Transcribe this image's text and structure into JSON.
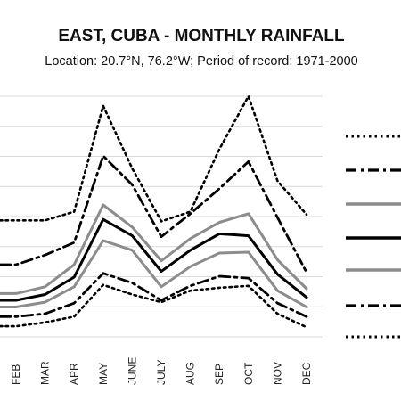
{
  "chart_data": {
    "type": "line",
    "title": "EAST, CUBA - MONTHLY RAINFALL",
    "subtitle": "Location: 20.7°N, 76.2°W; Period of record: 1971-2000",
    "categories": [
      "FEB",
      "MAR",
      "APR",
      "MAY",
      "JUNE",
      "JULY",
      "AUG",
      "SEP",
      "OCT",
      "NOV",
      "DEC"
    ],
    "ylim": [
      0,
      250
    ],
    "grid": true,
    "series": [
      {
        "style": "dotted-black",
        "values": [
          121,
          121,
          130,
          240,
          175,
          120,
          130,
          195,
          250,
          162,
          127
        ]
      },
      {
        "style": "dashdot-black",
        "values": [
          75,
          85,
          98,
          188,
          158,
          104,
          128,
          154,
          182,
          124,
          67
        ]
      },
      {
        "style": "solid-gray",
        "values": [
          45,
          52,
          75,
          137,
          114,
          79,
          102,
          119,
          128,
          80,
          50
        ]
      },
      {
        "style": "solid-black",
        "values": [
          38,
          44,
          62,
          122,
          105,
          68,
          90,
          107,
          105,
          65,
          41
        ]
      },
      {
        "style": "solid-gray",
        "values": [
          31,
          36,
          52,
          100,
          90,
          52,
          73,
          87,
          88,
          48,
          31
        ]
      },
      {
        "style": "dashdot-black",
        "values": [
          21,
          24,
          35,
          66,
          56,
          38,
          53,
          63,
          61,
          35,
          21
        ]
      },
      {
        "style": "dotted-black",
        "values": [
          11,
          15,
          21,
          54,
          44,
          36,
          48,
          51,
          53,
          24,
          10
        ]
      }
    ],
    "colors": {
      "black": "#000000",
      "gray": "#8c8c8c",
      "grid": "#d9d9d9"
    }
  }
}
